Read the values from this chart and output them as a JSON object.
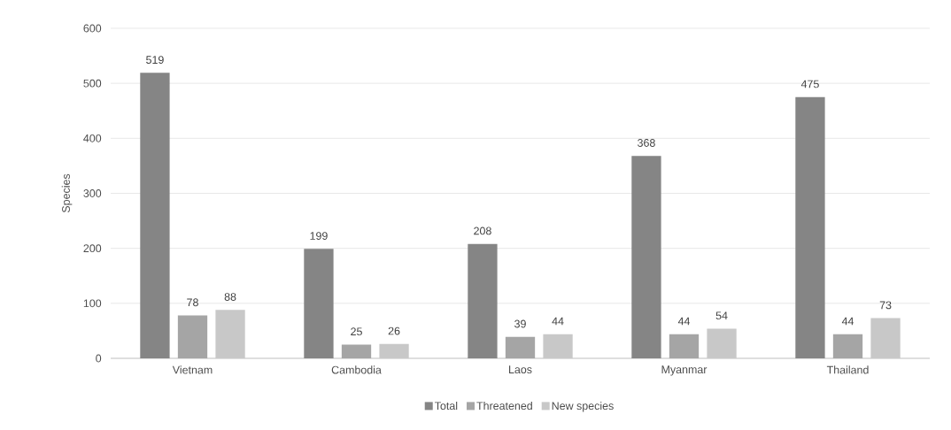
{
  "chart_data": {
    "type": "bar",
    "ylabel": "Species",
    "categories": [
      "Vietnam",
      "Cambodia",
      "Laos",
      "Myanmar",
      "Thailand"
    ],
    "series": [
      {
        "name": "Total",
        "color": "#858585",
        "values": [
          519,
          199,
          208,
          368,
          475
        ]
      },
      {
        "name": "Threatened",
        "color": "#a5a5a5",
        "values": [
          78,
          25,
          39,
          44,
          44
        ]
      },
      {
        "name": "New species",
        "color": "#c8c8c8",
        "values": [
          88,
          26,
          44,
          54,
          73
        ]
      }
    ],
    "ylim": [
      0,
      600
    ],
    "yticks": [
      0,
      100,
      200,
      300,
      400,
      500,
      600
    ],
    "grid": "y",
    "legend": "bottom",
    "data_labels": true
  }
}
